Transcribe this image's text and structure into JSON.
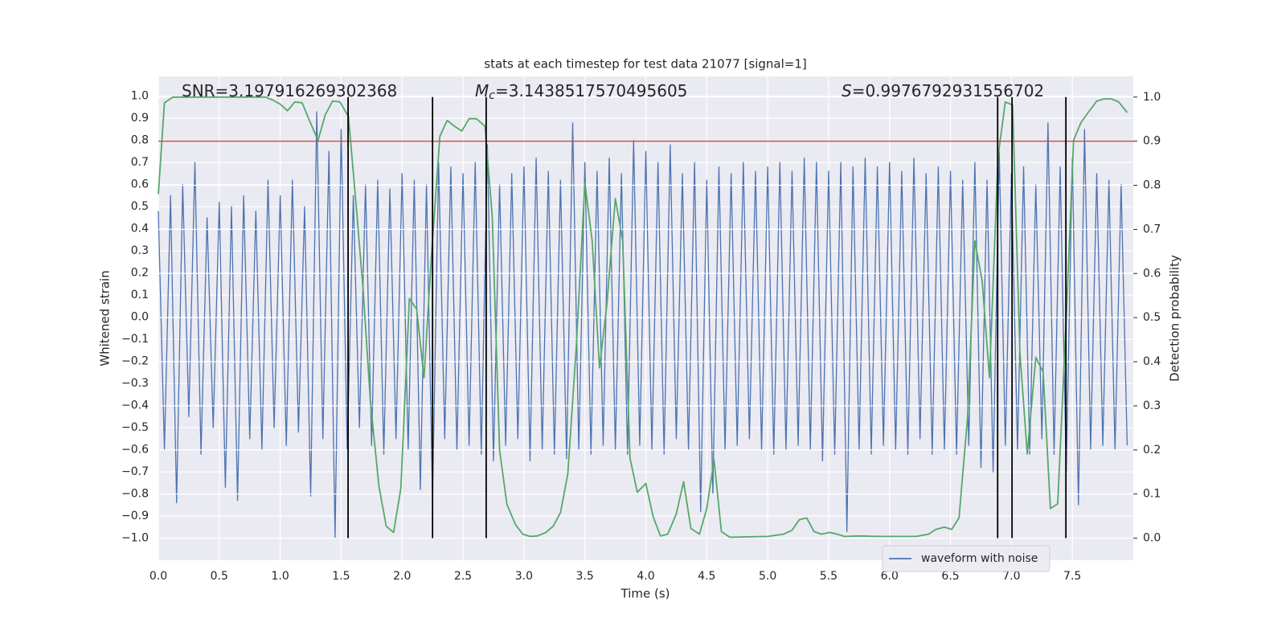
{
  "chart_data": {
    "type": "line",
    "title": "stats at each timestep for test data 21077 [signal=1]",
    "x_label": "Time (s)",
    "y_label": "Whitened strain",
    "y2_label": "Detection probability",
    "xlim": [
      0,
      8
    ],
    "ylim": [
      -1.1,
      1.09
    ],
    "y2lim": [
      -0.05,
      1.047
    ],
    "grid": true,
    "legend": "lower right",
    "xticks": [
      {
        "value": 0,
        "label": "0.0"
      },
      {
        "value": 0.5,
        "label": "0.5"
      },
      {
        "value": 1,
        "label": "1.0"
      },
      {
        "value": 1.5,
        "label": "1.5"
      },
      {
        "value": 2,
        "label": "2.0"
      },
      {
        "value": 2.5,
        "label": "2.5"
      },
      {
        "value": 3,
        "label": "3.0"
      },
      {
        "value": 3.5,
        "label": "3.5"
      },
      {
        "value": 4,
        "label": "4.0"
      },
      {
        "value": 4.5,
        "label": "4.5"
      },
      {
        "value": 5,
        "label": "5.0"
      },
      {
        "value": 5.5,
        "label": "5.5"
      },
      {
        "value": 6,
        "label": "6.0"
      },
      {
        "value": 6.5,
        "label": "6.5"
      },
      {
        "value": 7,
        "label": "7.0"
      },
      {
        "value": 7.5,
        "label": "7.5"
      }
    ],
    "yticks": [
      {
        "value": -1,
        "label": "−1.0"
      },
      {
        "value": -0.9,
        "label": "−0.9"
      },
      {
        "value": -0.8,
        "label": "−0.8"
      },
      {
        "value": -0.7,
        "label": "−0.7"
      },
      {
        "value": -0.6,
        "label": "−0.6"
      },
      {
        "value": -0.5,
        "label": "−0.5"
      },
      {
        "value": -0.4,
        "label": "−0.4"
      },
      {
        "value": -0.3,
        "label": "−0.3"
      },
      {
        "value": -0.2,
        "label": "−0.2"
      },
      {
        "value": -0.1,
        "label": "−0.1"
      },
      {
        "value": 0,
        "label": "0.0"
      },
      {
        "value": 0.1,
        "label": "0.1"
      },
      {
        "value": 0.2,
        "label": "0.2"
      },
      {
        "value": 0.3,
        "label": "0.3"
      },
      {
        "value": 0.4,
        "label": "0.4"
      },
      {
        "value": 0.5,
        "label": "0.5"
      },
      {
        "value": 0.6,
        "label": "0.6"
      },
      {
        "value": 0.7,
        "label": "0.7"
      },
      {
        "value": 0.8,
        "label": "0.8"
      },
      {
        "value": 0.9,
        "label": "0.9"
      },
      {
        "value": 1,
        "label": "1.0"
      }
    ],
    "y2ticks": [
      {
        "value": 0,
        "label": "0.0"
      },
      {
        "value": 0.1,
        "label": "0.1"
      },
      {
        "value": 0.2,
        "label": "0.2"
      },
      {
        "value": 0.3,
        "label": "0.3"
      },
      {
        "value": 0.4,
        "label": "0.4"
      },
      {
        "value": 0.5,
        "label": "0.5"
      },
      {
        "value": 0.6,
        "label": "0.6"
      },
      {
        "value": 0.7,
        "label": "0.7"
      },
      {
        "value": 0.8,
        "label": "0.8"
      },
      {
        "value": 0.9,
        "label": "0.9"
      },
      {
        "value": 1,
        "label": "1.0"
      }
    ],
    "series": [
      {
        "name": "waveform with noise",
        "color": "#4c72b0",
        "x": [
          0,
          0.05,
          0.1,
          0.15,
          0.2,
          0.25,
          0.3,
          0.35,
          0.4,
          0.45,
          0.5,
          0.55,
          0.6,
          0.65,
          0.7,
          0.75,
          0.8,
          0.85,
          0.9,
          0.95,
          1,
          1.05,
          1.1,
          1.15,
          1.2,
          1.25,
          1.3,
          1.35,
          1.4,
          1.45,
          1.5,
          1.55,
          1.6,
          1.65,
          1.7,
          1.75,
          1.8,
          1.85,
          1.9,
          1.95,
          2,
          2.05,
          2.1,
          2.15,
          2.2,
          2.25,
          2.3,
          2.35,
          2.4,
          2.45,
          2.5,
          2.55,
          2.6,
          2.65,
          2.7,
          2.75,
          2.8,
          2.85,
          2.9,
          2.95,
          3,
          3.05,
          3.1,
          3.15,
          3.2,
          3.25,
          3.3,
          3.35,
          3.4,
          3.45,
          3.5,
          3.55,
          3.6,
          3.65,
          3.7,
          3.75,
          3.8,
          3.85,
          3.9,
          3.95,
          4,
          4.05,
          4.1,
          4.15,
          4.2,
          4.25,
          4.3,
          4.35,
          4.4,
          4.45,
          4.5,
          4.55,
          4.6,
          4.65,
          4.7,
          4.75,
          4.8,
          4.85,
          4.9,
          4.95,
          5,
          5.05,
          5.1,
          5.15,
          5.2,
          5.25,
          5.3,
          5.35,
          5.4,
          5.45,
          5.5,
          5.55,
          5.6,
          5.65,
          5.7,
          5.75,
          5.8,
          5.85,
          5.9,
          5.95,
          6,
          6.05,
          6.1,
          6.15,
          6.2,
          6.25,
          6.3,
          6.35,
          6.4,
          6.45,
          6.5,
          6.55,
          6.6,
          6.65,
          6.7,
          6.75,
          6.8,
          6.85,
          6.9,
          6.95,
          7,
          7.05,
          7.1,
          7.15,
          7.2,
          7.25,
          7.3,
          7.35,
          7.4,
          7.45,
          7.5,
          7.55,
          7.6,
          7.65,
          7.7,
          7.75,
          7.8,
          7.85,
          7.9,
          7.95
        ],
        "values": [
          0.48,
          -0.6,
          0.55,
          -0.84,
          0.6,
          -0.45,
          0.7,
          -0.62,
          0.45,
          -0.5,
          0.52,
          -0.77,
          0.5,
          -0.83,
          0.55,
          -0.55,
          0.48,
          -0.6,
          0.62,
          -0.5,
          0.55,
          -0.58,
          0.62,
          -0.52,
          0.5,
          -0.81,
          0.93,
          -0.55,
          0.75,
          -1.0,
          0.85,
          -0.6,
          0.55,
          -0.5,
          0.6,
          -0.58,
          0.62,
          -0.62,
          0.58,
          -0.55,
          0.65,
          -0.6,
          0.62,
          -0.78,
          0.6,
          -0.82,
          0.7,
          -0.55,
          0.68,
          -0.6,
          0.65,
          -0.58,
          0.7,
          -0.62,
          0.78,
          -0.65,
          0.6,
          -0.58,
          0.65,
          -0.55,
          0.68,
          -0.65,
          0.72,
          -0.6,
          0.66,
          -0.62,
          0.62,
          -0.64,
          0.88,
          -0.6,
          0.7,
          -0.62,
          0.66,
          -0.58,
          0.72,
          -0.6,
          0.65,
          -0.62,
          0.8,
          -0.58,
          0.75,
          -0.6,
          0.7,
          -0.62,
          0.78,
          -0.55,
          0.65,
          -0.6,
          0.7,
          -0.88,
          0.62,
          -0.8,
          0.68,
          -0.6,
          0.65,
          -0.58,
          0.7,
          -0.55,
          0.66,
          -0.6,
          0.68,
          -0.62,
          0.7,
          -0.6,
          0.66,
          -0.58,
          0.72,
          -0.6,
          0.7,
          -0.65,
          0.66,
          -0.62,
          0.7,
          -0.97,
          0.68,
          -0.6,
          0.72,
          -0.62,
          0.68,
          -0.58,
          0.7,
          -0.6,
          0.66,
          -0.62,
          0.72,
          -0.55,
          0.65,
          -0.62,
          0.68,
          -0.6,
          0.66,
          -0.62,
          0.62,
          -0.58,
          0.7,
          -0.68,
          0.62,
          -0.7,
          0.75,
          -0.58,
          0.65,
          -0.6,
          0.68,
          -0.62,
          0.6,
          -0.55,
          0.88,
          -0.62,
          0.68,
          -0.7,
          0.72,
          -0.85,
          0.85,
          -0.6,
          0.65,
          -0.58,
          0.62,
          -0.6,
          0.6,
          -0.58
        ]
      },
      {
        "color": "#55a868",
        "axis": "y2",
        "x": [
          0,
          0.05,
          0.12,
          0.3,
          0.5,
          0.7,
          0.88,
          0.94,
          1,
          1.06,
          1.12,
          1.18,
          1.24,
          1.31,
          1.37,
          1.43,
          1.49,
          1.56,
          1.62,
          1.68,
          1.74,
          1.81,
          1.87,
          1.93,
          1.99,
          2.06,
          2.12,
          2.18,
          2.24,
          2.31,
          2.37,
          2.43,
          2.49,
          2.55,
          2.61,
          2.68,
          2.74,
          2.8,
          2.86,
          2.93,
          2.99,
          3.05,
          3.11,
          3.18,
          3.24,
          3.3,
          3.36,
          3.43,
          3.5,
          3.56,
          3.62,
          3.68,
          3.75,
          3.81,
          3.87,
          3.93,
          4,
          4.06,
          4.12,
          4.18,
          4.25,
          4.31,
          4.37,
          4.44,
          4.5,
          4.56,
          4.62,
          4.69,
          5,
          5.13,
          5.2,
          5.26,
          5.32,
          5.38,
          5.44,
          5.51,
          5.57,
          5.63,
          5.76,
          5.89,
          6.02,
          6.22,
          6.32,
          6.38,
          6.45,
          6.51,
          6.57,
          6.64,
          6.7,
          6.76,
          6.82,
          6.89,
          6.95,
          7.01,
          7.07,
          7.13,
          7.2,
          7.26,
          7.32,
          7.38,
          7.45,
          7.51,
          7.57,
          7.63,
          7.7,
          7.76,
          7.82,
          7.88,
          7.95
        ],
        "values": [
          0.78,
          0.987,
          1.0,
          1.0,
          1.0,
          1.0,
          1.0,
          0.993,
          0.984,
          0.969,
          0.989,
          0.987,
          0.947,
          0.902,
          0.96,
          0.991,
          0.989,
          0.956,
          0.765,
          0.565,
          0.31,
          0.118,
          0.027,
          0.013,
          0.113,
          0.543,
          0.519,
          0.364,
          0.637,
          0.911,
          0.947,
          0.934,
          0.923,
          0.951,
          0.951,
          0.934,
          0.729,
          0.2,
          0.077,
          0.031,
          0.009,
          0.004,
          0.005,
          0.013,
          0.027,
          0.058,
          0.146,
          0.437,
          0.805,
          0.674,
          0.386,
          0.528,
          0.77,
          0.674,
          0.182,
          0.104,
          0.124,
          0.049,
          0.005,
          0.009,
          0.055,
          0.128,
          0.022,
          0.009,
          0.067,
          0.177,
          0.015,
          0.002,
          0.004,
          0.009,
          0.018,
          0.042,
          0.046,
          0.015,
          0.009,
          0.013,
          0.009,
          0.004,
          0.005,
          0.004,
          0.004,
          0.004,
          0.009,
          0.02,
          0.025,
          0.02,
          0.046,
          0.273,
          0.674,
          0.583,
          0.364,
          0.865,
          0.989,
          0.982,
          0.419,
          0.191,
          0.41,
          0.377,
          0.067,
          0.078,
          0.5,
          0.902,
          0.942,
          0.965,
          0.991,
          0.996,
          0.996,
          0.989,
          0.965
        ]
      }
    ],
    "hline": {
      "value": 0.9,
      "axis": "y2",
      "color": "#c44e52"
    },
    "vlines": {
      "x": [
        1.557,
        2.25,
        2.69,
        6.887,
        7.005,
        7.447
      ],
      "ymin": 0,
      "ymax": 1,
      "axis": "y2",
      "color": "#000000"
    },
    "annotations": [
      {
        "text": "SNR=3.197916269302368"
      },
      {
        "symbol": "M",
        "subscript": "c",
        "text": "=3.1438517570495605"
      },
      {
        "symbol": "S",
        "text": "=0.9976792931556702"
      }
    ]
  }
}
